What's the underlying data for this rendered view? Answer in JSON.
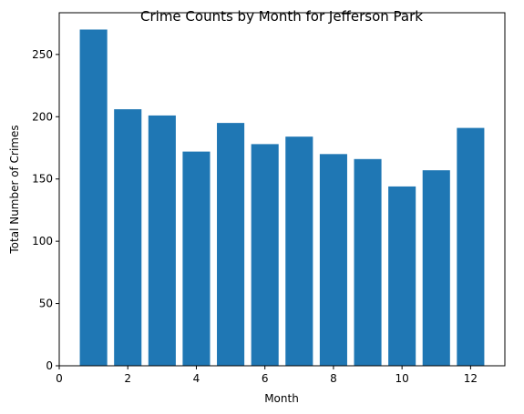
{
  "chart_data": {
    "type": "bar",
    "title": "Crime Counts by Month for Jefferson Park",
    "xlabel": "Month",
    "ylabel": "Total Number of Crimes",
    "x": [
      1,
      2,
      3,
      4,
      5,
      6,
      7,
      8,
      9,
      10,
      11,
      12
    ],
    "values": [
      270,
      206,
      201,
      172,
      195,
      178,
      184,
      170,
      166,
      144,
      157,
      191
    ],
    "xlim": [
      0,
      13
    ],
    "ylim": [
      0,
      283.5
    ],
    "xticks": [
      0,
      2,
      4,
      6,
      8,
      10,
      12
    ],
    "yticks": [
      0,
      50,
      100,
      150,
      200,
      250
    ],
    "bar_width": 0.8,
    "bar_color": "#1f77b4",
    "grid": false,
    "legend": "none"
  }
}
